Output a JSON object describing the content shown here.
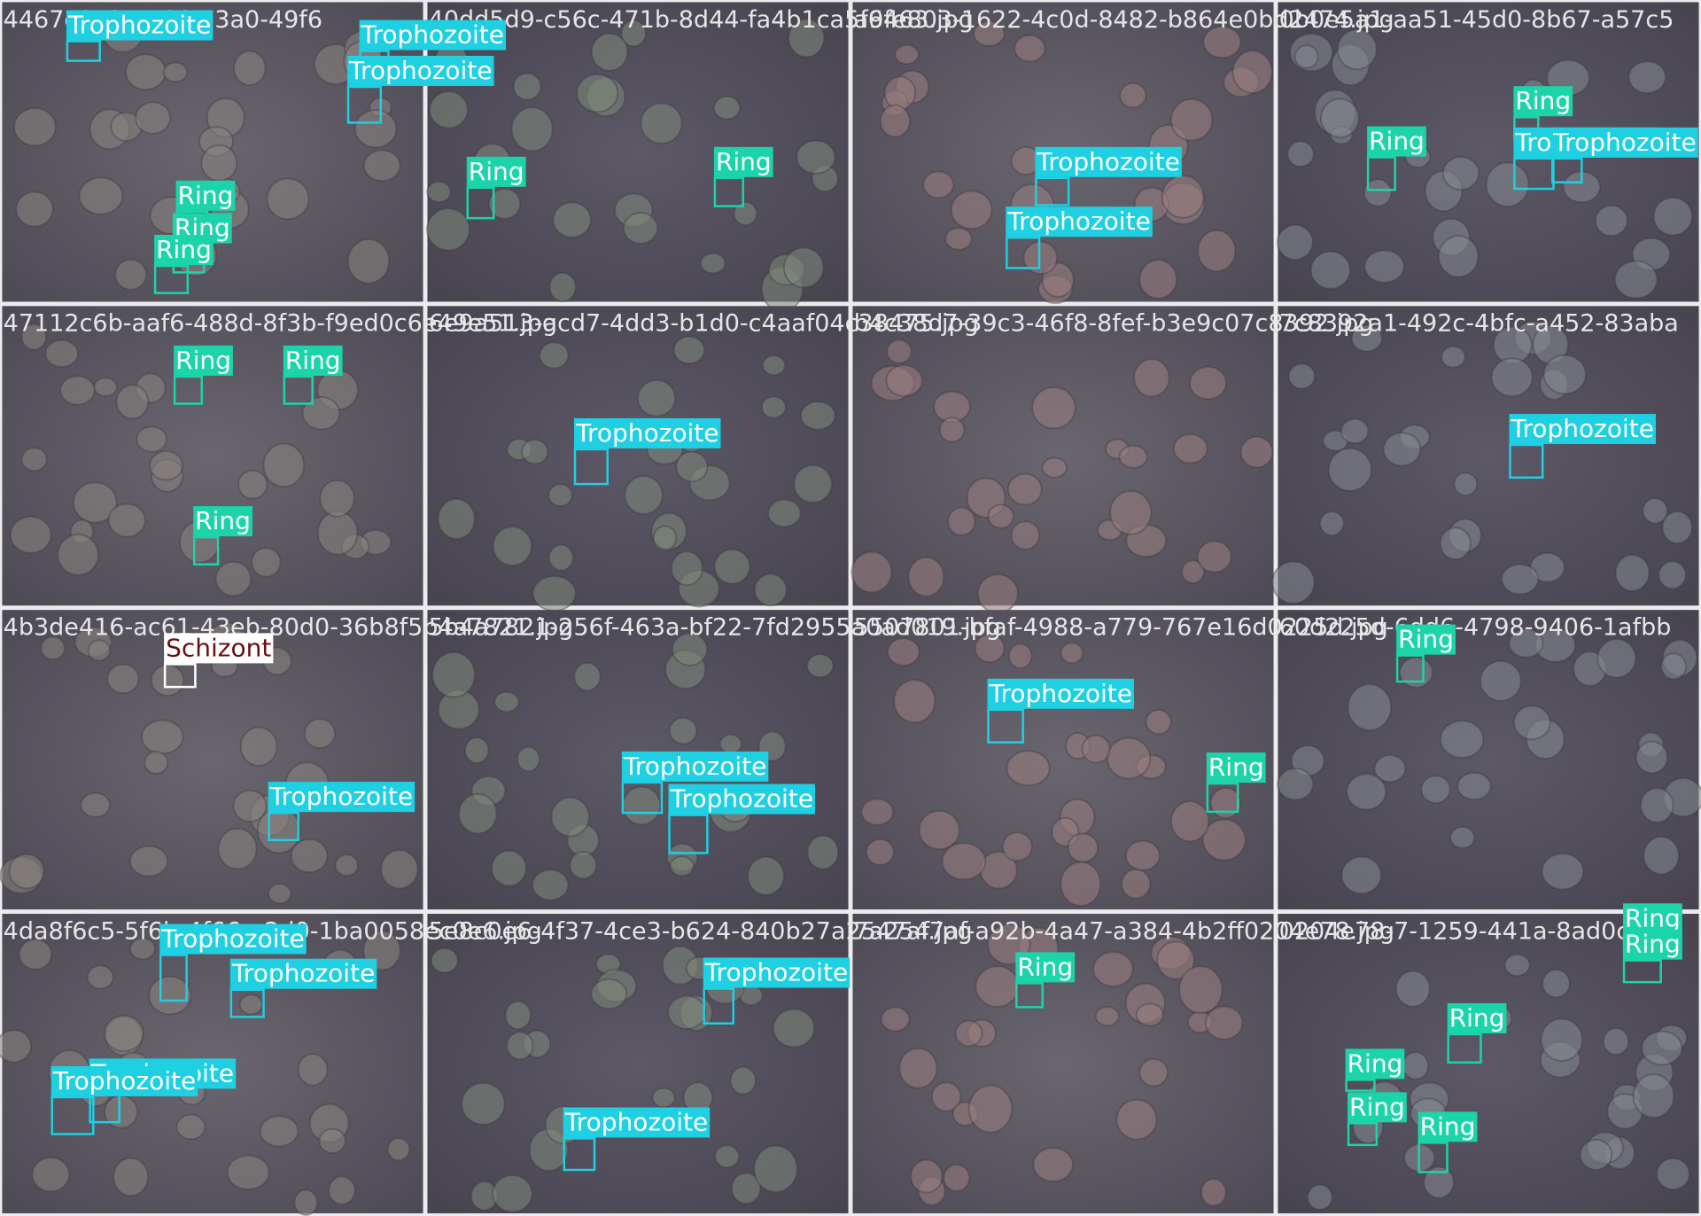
{
  "tiles": [
    {
      "filename": "4467e3c8-4a66-a3a0-49f6",
      "detections": [
        {
          "label": "Trophozoite",
          "color": "#1fcfe2"
        },
        {
          "label": "Trophozoite",
          "color": "#1fcfe2"
        },
        {
          "label": "Trophozoite",
          "color": "#1fcfe2"
        },
        {
          "label": "Ring",
          "color": "#1cd4aa"
        },
        {
          "label": "Ring",
          "color": "#1cd4aa"
        },
        {
          "label": "Ring",
          "color": "#1cd4aa"
        }
      ]
    },
    {
      "filename": "40dd5d9-c56c-471b-8d44-fa4b1ca5f6463.jpg",
      "detections": [
        {
          "label": "Ring",
          "color": "#1cd4aa"
        },
        {
          "label": "Ring",
          "color": "#1cd4aa"
        }
      ]
    },
    {
      "filename": "a9fe803-1622-4c0d-8482-b864e0bd2474.jpg",
      "detections": [
        {
          "label": "Trophozoite",
          "color": "#1fcfe2"
        },
        {
          "label": "Trophozoite",
          "color": "#1fcfe2"
        }
      ]
    },
    {
      "filename": "0b0e5a1-aa51-45d0-8b67-a57c5",
      "detections": [
        {
          "label": "Ring",
          "color": "#1cd4aa"
        },
        {
          "label": "Ring",
          "color": "#1cd4aa"
        },
        {
          "label": "Trophozoite",
          "color": "#1fcfe2"
        },
        {
          "label": "Trophozoite",
          "color": "#1fcfe2"
        }
      ]
    },
    {
      "filename": "47112c6b-aaf6-488d-8f3b-f9ed0c6e49e51.jpg",
      "detections": [
        {
          "label": "Ring",
          "color": "#1cd4aa"
        },
        {
          "label": "Ring",
          "color": "#1cd4aa"
        },
        {
          "label": "Ring",
          "color": "#1cd4aa"
        }
      ]
    },
    {
      "filename": "6e9a513-acd7-4dd3-b1d0-c4aaf04c38475.jpg",
      "detections": [
        {
          "label": "Trophozoite",
          "color": "#1fcfe2"
        }
      ]
    },
    {
      "filename": "b4c38d7-39c3-46f8-8fef-b3e9c07c8392.jpg",
      "detections": []
    },
    {
      "filename": "7c8392a1-492c-4bfc-a452-83aba",
      "detections": [
        {
          "label": "Trophozoite",
          "color": "#1fcfe2"
        }
      ]
    },
    {
      "filename": "4b3de416-ac61-43eb-80d0-36b8f5b4a7821.jpg",
      "detections": [
        {
          "label": "Schizont",
          "color": "#ffffff"
        },
        {
          "label": "Trophozoite",
          "color": "#1fcfe2"
        }
      ]
    },
    {
      "filename": "5b4a7821-256f-463a-bf22-7fd2955a0ad019.jpg",
      "detections": [
        {
          "label": "Trophozoite",
          "color": "#1fcfe2"
        },
        {
          "label": "Trophozoite",
          "color": "#1fcfe2"
        }
      ]
    },
    {
      "filename": "5507801-bfaf-4988-a779-767e16d0225d.jpg",
      "detections": [
        {
          "label": "Trophozoite",
          "color": "#1fcfe2"
        },
        {
          "label": "Ring",
          "color": "#1cd4aa"
        }
      ]
    },
    {
      "filename": "60d225d-6dd6-4798-9406-1afbb",
      "detections": [
        {
          "label": "Ring",
          "color": "#1cd4aa"
        }
      ]
    },
    {
      "filename": "4da8f6c5-5f6b-4f66-a2d0-1ba0058ec0e6.jpg",
      "detections": [
        {
          "label": "Trophozoite",
          "color": "#1fcfe2"
        },
        {
          "label": "Trophozoite",
          "color": "#1fcfe2"
        },
        {
          "label": "Trophozoite",
          "color": "#1fcfe2"
        },
        {
          "label": "Trophozoite",
          "color": "#1fcfe2"
        }
      ]
    },
    {
      "filename": "5e8c0e6-4f37-4ce3-b624-840b27a2547af.jpg",
      "detections": [
        {
          "label": "Trophozoite",
          "color": "#1fcfe2"
        },
        {
          "label": "Trophozoite",
          "color": "#1fcfe2"
        }
      ]
    },
    {
      "filename": "7a2547af-a92b-4a47-a384-4b2ff0204e78.jpg",
      "detections": [
        {
          "label": "Ring",
          "color": "#1cd4aa"
        }
      ]
    },
    {
      "filename": "0204e78-7-1259-441a-8ad0c9",
      "detections": [
        {
          "label": "Ring",
          "color": "#1cd4aa"
        },
        {
          "label": "Ring",
          "color": "#1cd4aa"
        },
        {
          "label": "Ring",
          "color": "#1cd4aa"
        },
        {
          "label": "Ring",
          "color": "#1cd4aa"
        },
        {
          "label": "Ring",
          "color": "#1cd4aa"
        },
        {
          "label": "Ring",
          "color": "#1cd4aa"
        }
      ]
    }
  ]
}
